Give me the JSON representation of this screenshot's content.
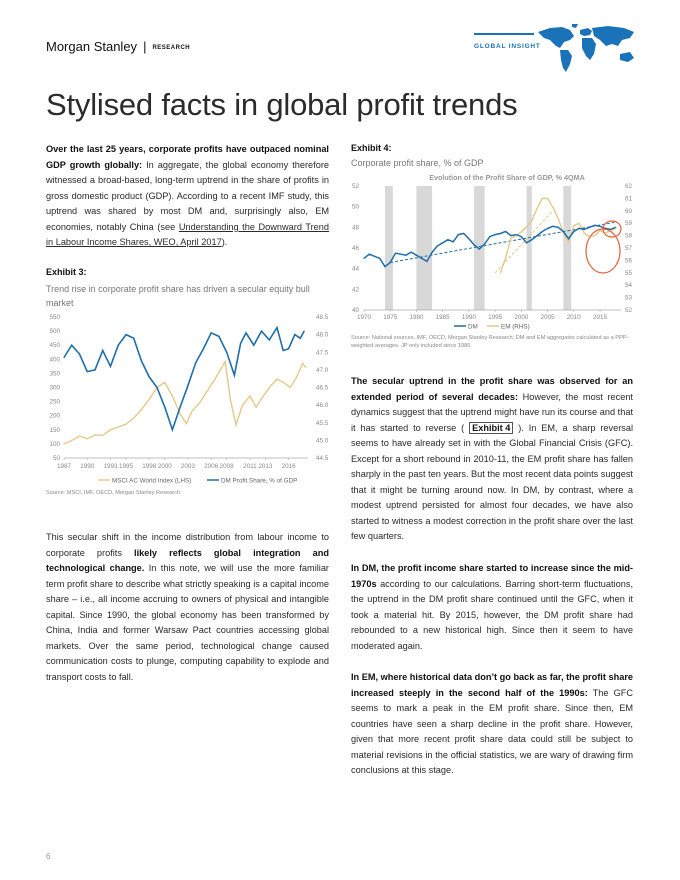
{
  "header": {
    "brand": "Morgan Stanley",
    "separator": "|",
    "research": "RESEARCH",
    "series": "GLOBAL INSIGHT"
  },
  "title": "Stylised facts in global profit trends",
  "left_column": {
    "p1_bold": "Over the last 25 years, corporate profits have outpaced nominal GDP growth globally:",
    "p1_text": " In aggregate, the global economy therefore witnessed a broad-based, long-term uptrend in the share of profits in gross domestic product (GDP). According to a recent IMF study, this uptrend was shared by most DM and, surprisingly also, EM economies, notably China (see ",
    "p1_link": "Understanding the Downward Trend in Labour Income Shares, WEO, April 2017",
    "p1_end": ").",
    "p2_a": "This secular shift in the income distribution from labour income to corporate profits ",
    "p2_bold": "likely reflects global integration and technological change.",
    "p2_b": " In this note, we will use the more familiar term profit share to describe what strictly speaking is a capital income share – i.e., all income accruing to owners of physical and intangible capital. Since 1990, the global economy has been transformed by China, India and former Warsaw Pact countries accessing global markets. Over the same period, technological change caused communication costs to plunge, computing capability to explode and transport costs to fall."
  },
  "exhibit3": {
    "label": "Exhibit 3:",
    "subtitle": "Trend rise in corporate profit share has driven a secular equity bull market",
    "source": "Source: MSCI, IMF, OECD, Morgan Stanley Research",
    "legend_lhs": "MSCI AC World Index (LHS)",
    "legend_rhs": "DM Profit Share, % of GDP"
  },
  "exhibit4": {
    "label": "Exhibit 4:",
    "subtitle": "Corporate profit share, % of GDP",
    "chart_title": "Evolution  of  the Profit Share of GDP, % 4QMA",
    "legend_dm": "DM",
    "legend_em": "EM (RHS)",
    "source": "Source: National sources, IMF, OECD, Morgan Stanley Research; DM and EM aggregates calculated as a PPP-weighted averages. JP only included since 1980"
  },
  "right_column": {
    "p1_bold": "The secular uptrend in the profit share was observed for an extended period of several decades:",
    "p1_a": " However, the most recent dynamics suggest that the uptrend might have run its course and that it has started to reverse ( ",
    "p1_link": "Exhibit 4",
    "p1_b": " ). In EM, a sharp reversal seems to have already set in with the Global Financial Crisis (GFC). Except for a short rebound in 2010-11, the EM profit share has fallen sharply in the past ten years. But the most recent data points suggest that it might be turning around now. In DM, by contrast, where a modest uptrend persisted for almost four decades, we have also started to witness a modest correction in the profit share over the last few quarters.",
    "p2_bold": "In DM, the profit income share started to increase since the mid-1970s",
    "p2_text": " according to our calculations. Barring short-term fluctuations, the uptrend in the DM profit share continued until the GFC, when it took a material hit. By 2015, however, the DM profit share had rebounded to a new historical high. Since then it seem to have moderated again.",
    "p3_bold": "In EM, where historical data don’t go back as far, the profit share increased steeply in the second half of the 1990s:",
    "p3_text": " The GFC seems to mark a peak in the EM profit share. Since then, EM countries have seen a sharp decline in the profit share. However, given that more recent profit share data could still be subject to material revisions in the official statistics, we are wary of drawing firm conclusions at this stage."
  },
  "page_number": "6",
  "colors": {
    "blue": "#1f6ea8",
    "tan": "#e3c98a",
    "accent": "#1a72b8",
    "recession": "#d8d8d8",
    "circle": "#e5603a"
  },
  "chart_data": [
    {
      "type": "line",
      "title": "",
      "x_ticks": [
        "1987",
        "1990",
        "1993",
        "1995",
        "1998",
        "2000",
        "2003",
        "2006",
        "2008",
        "2011",
        "2013",
        "2016"
      ],
      "x_range": [
        1987,
        2018.5
      ],
      "y_left_range": [
        50,
        550
      ],
      "y_left_ticks": [
        "50",
        "100",
        "150",
        "200",
        "250",
        "300",
        "350",
        "400",
        "450",
        "500",
        "550"
      ],
      "y_right_range": [
        44.5,
        48.5
      ],
      "y_right_ticks": [
        "44.5",
        "45.0",
        "45.5",
        "46.0",
        "46.5",
        "47.0",
        "47.5",
        "48.0",
        "48.5"
      ],
      "series": [
        {
          "name": "MSCI AC World Index (LHS)",
          "axis": "left",
          "x": [
            1987.0,
            1988.0,
            1989.0,
            1990.0,
            1991.0,
            1992.0,
            1993.0,
            1994.0,
            1995.0,
            1996.0,
            1997.0,
            1998.0,
            1999.0,
            2000.0,
            2001.0,
            2002.0,
            2002.8,
            2003.5,
            2004.5,
            2005.5,
            2006.5,
            2007.8,
            2008.5,
            2009.2,
            2010.0,
            2011.0,
            2011.8,
            2012.5,
            2013.5,
            2014.5,
            2015.5,
            2016.2,
            2017.0,
            2017.8,
            2018.2
          ],
          "values": [
            100,
            112,
            128,
            118,
            132,
            130,
            150,
            160,
            170,
            192,
            222,
            258,
            300,
            318,
            270,
            205,
            172,
            215,
            245,
            288,
            330,
            392,
            255,
            168,
            235,
            270,
            230,
            260,
            300,
            330,
            315,
            300,
            335,
            385,
            372
          ]
        },
        {
          "name": "DM Profit Share, % of GDP",
          "axis": "right",
          "x": [
            1987.0,
            1988.0,
            1989.0,
            1990.0,
            1991.0,
            1992.0,
            1993.0,
            1994.0,
            1995.0,
            1996.0,
            1997.0,
            1998.0,
            1999.0,
            2000.0,
            2001.0,
            2002.0,
            2003.0,
            2004.0,
            2005.0,
            2006.0,
            2007.0,
            2008.0,
            2009.0,
            2009.8,
            2010.5,
            2011.5,
            2012.5,
            2013.5,
            2014.5,
            2015.3,
            2016.0,
            2016.8,
            2017.5,
            2018.0
          ],
          "values": [
            47.35,
            47.7,
            47.45,
            46.95,
            47.0,
            47.55,
            47.1,
            47.7,
            48.0,
            47.9,
            47.25,
            46.8,
            46.5,
            45.95,
            45.3,
            45.95,
            46.55,
            47.2,
            47.6,
            48.05,
            47.95,
            47.5,
            46.85,
            47.75,
            48.05,
            47.7,
            48.1,
            47.85,
            48.2,
            47.55,
            47.6,
            48.0,
            47.9,
            48.1
          ]
        }
      ]
    },
    {
      "type": "line",
      "title": "Evolution  of  the Profit Share of GDP, % 4QMA",
      "x_ticks": [
        "1970",
        "1975",
        "1980",
        "1985",
        "1990",
        "1995",
        "2000",
        "2005",
        "2010",
        "2015"
      ],
      "x_range": [
        1970,
        2019
      ],
      "y_left_range": [
        40,
        52
      ],
      "y_left_ticks": [
        "40",
        "42",
        "44",
        "46",
        "48",
        "50",
        "52"
      ],
      "y_right_range": [
        52,
        62
      ],
      "y_right_ticks": [
        "52",
        "53",
        "54",
        "55",
        "56",
        "57",
        "58",
        "59",
        "60",
        "61",
        "62"
      ],
      "recession_shading": [
        [
          1974,
          1975.5
        ],
        [
          1980,
          1983
        ],
        [
          1991,
          1993
        ],
        [
          2001,
          2002
        ],
        [
          2008,
          2009.5
        ]
      ],
      "series": [
        {
          "name": "DM",
          "axis": "left",
          "x": [
            1970,
            1971,
            1972,
            1973,
            1974,
            1975,
            1976,
            1977,
            1978,
            1979,
            1980,
            1981,
            1982,
            1983,
            1984,
            1985,
            1986,
            1987,
            1988,
            1989,
            1990,
            1991,
            1992,
            1993,
            1994,
            1995,
            1996,
            1997,
            1998,
            1999,
            2000,
            2001,
            2002,
            2003,
            2004,
            2005,
            2006,
            2007,
            2008,
            2009,
            2010,
            2011,
            2012,
            2013,
            2014,
            2015,
            2016,
            2017,
            2018
          ],
          "values": [
            45.0,
            45.4,
            45.2,
            45.0,
            44.2,
            44.6,
            45.5,
            45.4,
            45.3,
            45.6,
            45.3,
            45.0,
            44.7,
            45.6,
            46.2,
            46.5,
            46.8,
            46.6,
            47.3,
            47.4,
            46.9,
            46.3,
            45.9,
            46.4,
            47.1,
            47.3,
            47.4,
            47.6,
            47.2,
            47.3,
            47.1,
            46.5,
            46.8,
            47.2,
            47.6,
            47.9,
            48.1,
            48.0,
            47.6,
            46.9,
            47.6,
            47.9,
            47.8,
            48.0,
            48.2,
            48.1,
            47.9,
            47.8,
            48.0
          ]
        },
        {
          "name": "EM (RHS)",
          "axis": "right",
          "x": [
            1996,
            1997,
            1998,
            1999,
            2000,
            2001,
            2002,
            2003,
            2004,
            2005,
            2006,
            2007,
            2008,
            2009,
            2010,
            2011,
            2012,
            2013,
            2014,
            2015,
            2016,
            2017,
            2018
          ],
          "values": [
            55.0,
            56.2,
            57.8,
            58.0,
            58.3,
            58.7,
            59.2,
            60.2,
            61.0,
            61.0,
            60.3,
            59.4,
            58.2,
            57.5,
            58.8,
            59.0,
            58.2,
            57.9,
            58.0,
            58.4,
            58.2,
            58.4,
            58.6
          ]
        }
      ],
      "trend_lines": [
        {
          "series": "DM",
          "x": [
            1975,
            2018
          ],
          "values": [
            44.6,
            48.5
          ]
        },
        {
          "series": "EM (RHS)",
          "x": [
            1995,
            2006
          ],
          "values": [
            55.0,
            60.0
          ]
        }
      ]
    }
  ]
}
